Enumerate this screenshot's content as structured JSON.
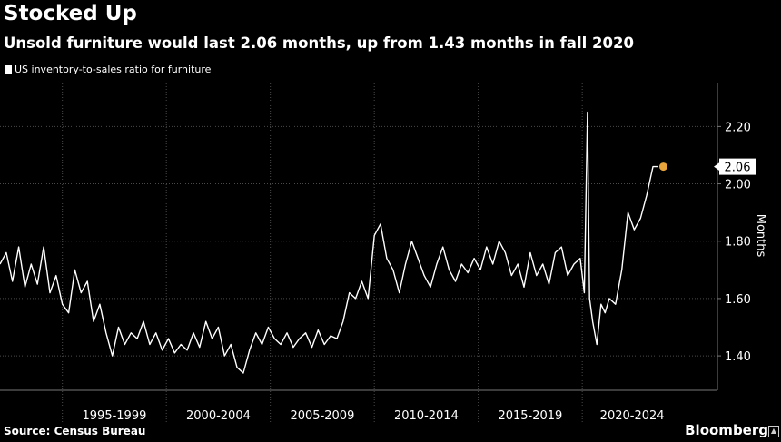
{
  "header": {
    "title": "Stocked Up",
    "subtitle": "Unsold furniture would last 2.06 months, up from 1.43 months in fall 2020"
  },
  "footer": {
    "source": "Source: Census Bureau",
    "brand": "Bloomberg"
  },
  "colors": {
    "background": "#000000",
    "line": "#ffffff",
    "grid": "#4a4a4a",
    "highlight": "#e8a33a"
  },
  "chart_data": {
    "type": "line",
    "title": "Stocked Up",
    "subtitle": "Unsold furniture would last 2.06 months, up from 1.43 months in fall 2020",
    "legend": [
      "US inventory-to-sales ratio for furniture"
    ],
    "ylabel": "Months",
    "xlabel": "",
    "ylim": [
      1.28,
      2.35
    ],
    "xlim": [
      1992.0,
      2026.5
    ],
    "y_ticks": [
      1.4,
      1.6,
      1.8,
      2.0,
      2.2
    ],
    "y_tick_labels": [
      "1.40",
      "1.60",
      "1.80",
      "2.00",
      "2.20"
    ],
    "x_period_labels": [
      "1995-1999",
      "2000-2004",
      "2005-2009",
      "2010-2014",
      "2015-2019",
      "2020-2024"
    ],
    "x_period_centers": [
      1997.5,
      2002.5,
      2007.5,
      2012.5,
      2017.5,
      2022.4
    ],
    "x_period_boundaries": [
      1995,
      2000,
      2005,
      2010,
      2015,
      2020
    ],
    "last_value_label": "2.06",
    "series": [
      {
        "name": "US inventory-to-sales ratio for furniture",
        "x": [
          1992.0,
          1992.3,
          1992.6,
          1992.9,
          1993.2,
          1993.5,
          1993.8,
          1994.1,
          1994.4,
          1994.7,
          1995.0,
          1995.3,
          1995.6,
          1995.9,
          1996.2,
          1996.5,
          1996.8,
          1997.1,
          1997.4,
          1997.7,
          1998.0,
          1998.3,
          1998.6,
          1998.9,
          1999.2,
          1999.5,
          1999.8,
          2000.1,
          2000.4,
          2000.7,
          2001.0,
          2001.3,
          2001.6,
          2001.9,
          2002.2,
          2002.5,
          2002.8,
          2003.1,
          2003.4,
          2003.7,
          2004.0,
          2004.3,
          2004.6,
          2004.9,
          2005.2,
          2005.5,
          2005.8,
          2006.1,
          2006.4,
          2006.7,
          2007.0,
          2007.3,
          2007.6,
          2007.9,
          2008.2,
          2008.5,
          2008.8,
          2009.1,
          2009.4,
          2009.7,
          2010.0,
          2010.3,
          2010.6,
          2010.9,
          2011.2,
          2011.5,
          2011.8,
          2012.1,
          2012.4,
          2012.7,
          2013.0,
          2013.3,
          2013.6,
          2013.9,
          2014.2,
          2014.5,
          2014.8,
          2015.1,
          2015.4,
          2015.7,
          2016.0,
          2016.3,
          2016.6,
          2016.9,
          2017.2,
          2017.5,
          2017.8,
          2018.1,
          2018.4,
          2018.7,
          2019.0,
          2019.3,
          2019.6,
          2019.9,
          2020.1,
          2020.25,
          2020.35,
          2020.5,
          2020.7,
          2020.9,
          2021.1,
          2021.3,
          2021.6,
          2021.9,
          2022.2,
          2022.5,
          2022.8,
          2023.1,
          2023.4,
          2023.7,
          2023.9
        ],
        "values": [
          1.72,
          1.76,
          1.66,
          1.78,
          1.64,
          1.72,
          1.65,
          1.78,
          1.62,
          1.68,
          1.58,
          1.55,
          1.7,
          1.62,
          1.66,
          1.52,
          1.58,
          1.48,
          1.4,
          1.5,
          1.44,
          1.48,
          1.46,
          1.52,
          1.44,
          1.48,
          1.42,
          1.46,
          1.41,
          1.44,
          1.42,
          1.48,
          1.43,
          1.52,
          1.46,
          1.5,
          1.4,
          1.44,
          1.36,
          1.34,
          1.42,
          1.48,
          1.44,
          1.5,
          1.46,
          1.44,
          1.48,
          1.43,
          1.46,
          1.48,
          1.43,
          1.49,
          1.44,
          1.47,
          1.46,
          1.52,
          1.62,
          1.6,
          1.66,
          1.6,
          1.82,
          1.86,
          1.74,
          1.7,
          1.62,
          1.72,
          1.8,
          1.74,
          1.68,
          1.64,
          1.72,
          1.78,
          1.7,
          1.66,
          1.72,
          1.69,
          1.74,
          1.7,
          1.78,
          1.72,
          1.8,
          1.76,
          1.68,
          1.72,
          1.64,
          1.76,
          1.68,
          1.72,
          1.65,
          1.76,
          1.78,
          1.68,
          1.72,
          1.74,
          1.62,
          2.25,
          1.6,
          1.52,
          1.44,
          1.58,
          1.55,
          1.6,
          1.58,
          1.7,
          1.9,
          1.84,
          1.88,
          1.96,
          2.06,
          2.06,
          2.06
        ]
      }
    ],
    "grid": true,
    "legend_position": "top-left",
    "y_axis_side": "right"
  }
}
